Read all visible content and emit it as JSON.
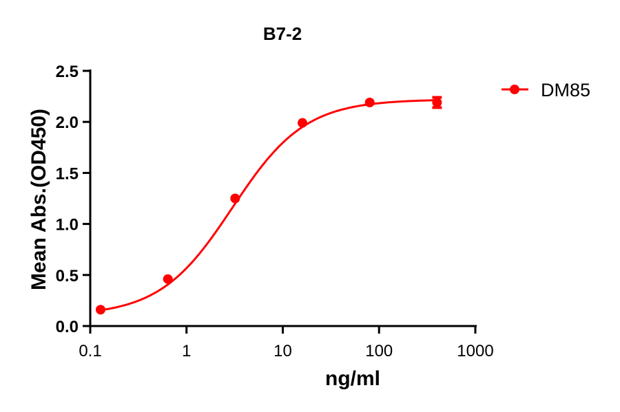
{
  "chart_data": {
    "type": "line",
    "title": "B7-2",
    "xlabel": "ng/ml",
    "ylabel": "Mean Abs.(OD450)",
    "xscale": "log",
    "xlim": [
      0.1,
      1000
    ],
    "ylim": [
      0,
      2.5
    ],
    "x_ticks": [
      "0.1",
      "1",
      "10",
      "100",
      "1000"
    ],
    "y_ticks": [
      "0.0",
      "0.5",
      "1.0",
      "1.5",
      "2.0",
      "2.5"
    ],
    "grid": false,
    "legend_position": "right",
    "series": [
      {
        "name": "DM85",
        "color": "#ff0000",
        "x": [
          0.128,
          0.64,
          3.2,
          16,
          80,
          400
        ],
        "values": [
          0.16,
          0.46,
          1.25,
          1.99,
          2.19,
          2.19
        ],
        "error": [
          0,
          0,
          0,
          0,
          0,
          0.05
        ],
        "fit": "4PL sigmoid"
      }
    ]
  }
}
